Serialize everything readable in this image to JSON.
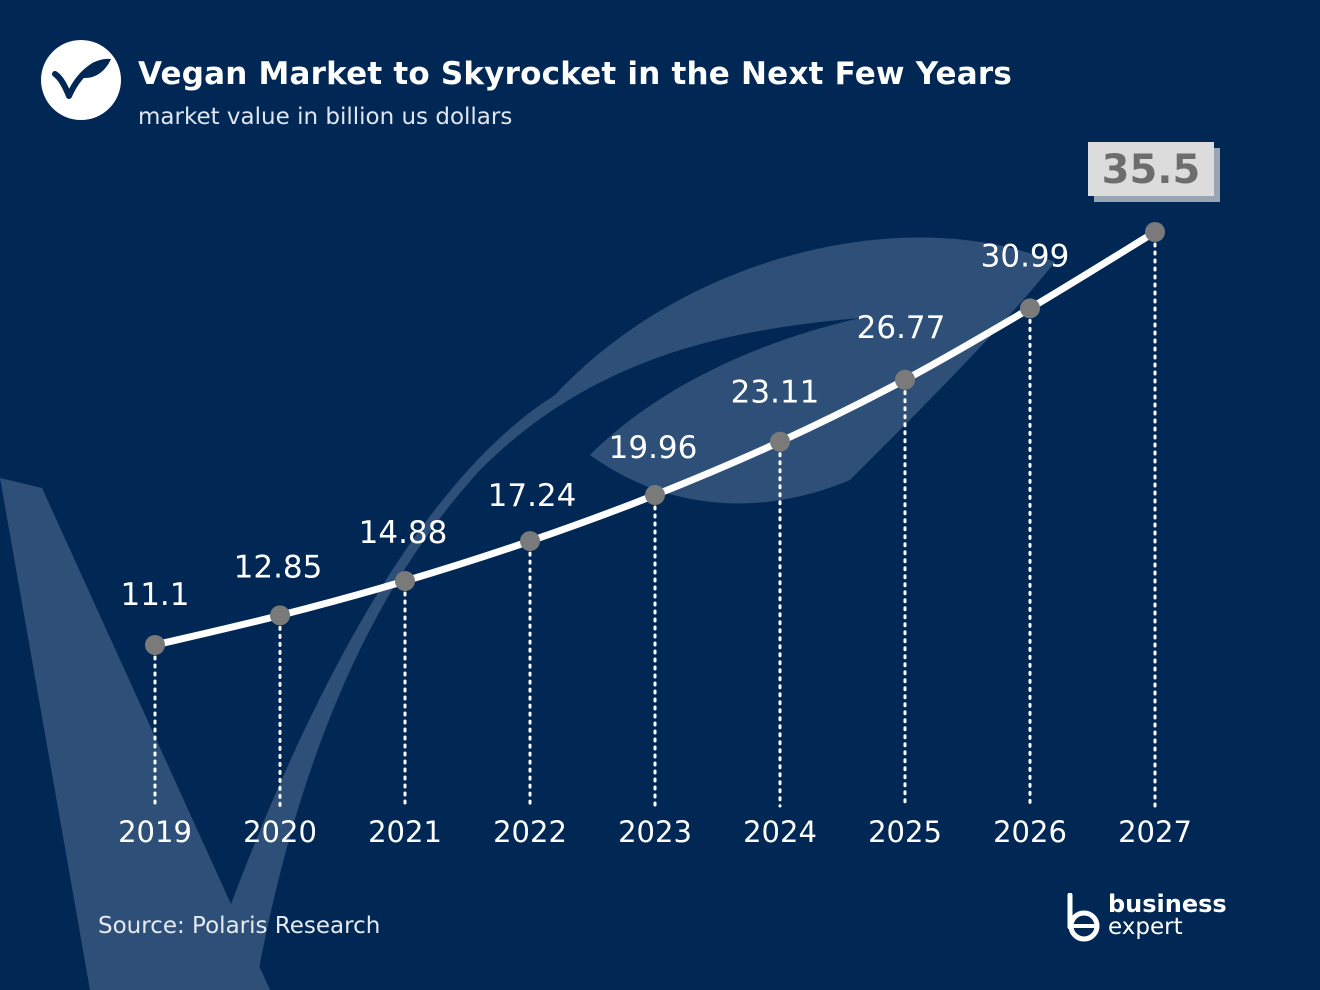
{
  "header": {
    "title": "Vegan Market to Skyrocket in the Next Few Years",
    "subtitle": "market value in billion us dollars"
  },
  "footer": {
    "source": "Source: Polaris Research",
    "brand_line1": "business",
    "brand_line2": "expert"
  },
  "colors": {
    "background": "#012854",
    "watermark": "#2e5078",
    "line": "#ffffff",
    "marker": "#7a7a7a",
    "highlight_box": "#dcdcdc",
    "highlight_text": "#6d6d6d"
  },
  "icons": [
    "vegan-leaf-logo-icon",
    "business-expert-logo-icon"
  ],
  "chart_data": {
    "type": "line",
    "title": "Vegan Market to Skyrocket in the Next Few Years",
    "subtitle": "market value in billion us dollars",
    "x": [
      "2019",
      "2020",
      "2021",
      "2022",
      "2023",
      "2024",
      "2025",
      "2026",
      "2027"
    ],
    "series": [
      {
        "values": [
          11.1,
          12.85,
          14.88,
          17.24,
          19.96,
          23.11,
          26.77,
          30.99,
          35.5
        ]
      }
    ],
    "data_labels": [
      "11.1",
      "12.85",
      "14.88",
      "17.24",
      "19.96",
      "23.11",
      "26.77",
      "30.99",
      "35.5"
    ],
    "highlighted_label": "35.5",
    "ylim": [
      0,
      40
    ],
    "grid": false,
    "legend": "none",
    "drop_lines": "dotted"
  }
}
